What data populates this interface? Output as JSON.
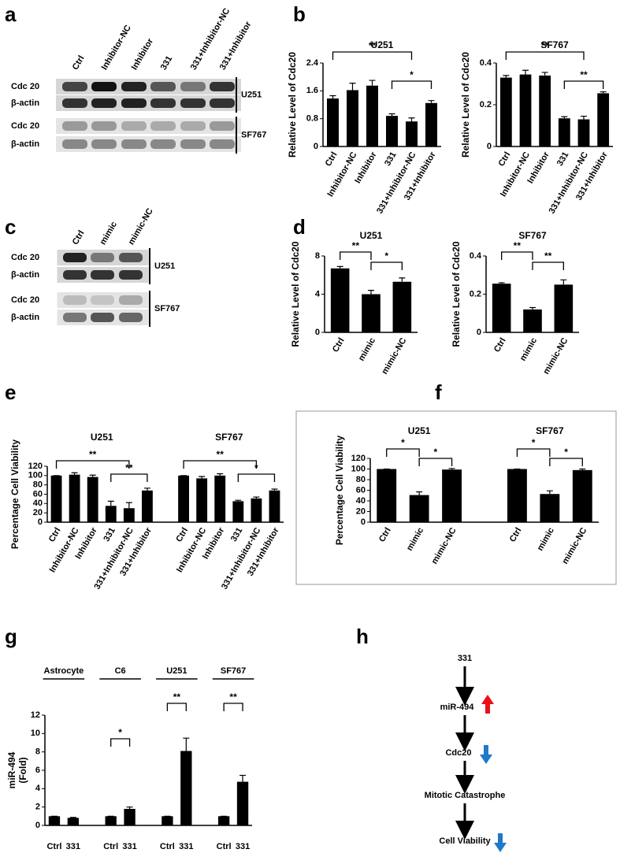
{
  "figure": {
    "panel_labels": [
      "a",
      "b",
      "c",
      "d",
      "e",
      "f",
      "g",
      "h"
    ]
  },
  "blot_a": {
    "lanes": [
      "Ctrl",
      "Inhibitor-NC",
      "Inhibitor",
      "331",
      "331+Inhibitor-NC",
      "331+Inhibitor"
    ],
    "rows": [
      "Cdc 20",
      "β-actin",
      "Cdc 20",
      "β-actin"
    ],
    "cell_lines": [
      "U251",
      "SF767"
    ]
  },
  "blot_c": {
    "lanes": [
      "Ctrl",
      "mimic",
      "mimic-NC"
    ],
    "rows": [
      "Cdc 20",
      "β-actin",
      "Cdc 20",
      "β-actin"
    ],
    "cell_lines": [
      "U251",
      "SF767"
    ]
  },
  "chart_data": [
    {
      "type": "bar",
      "title": "U251",
      "ylabel": "Relative Level of Cdc20",
      "color": "#000000",
      "categories": [
        "Ctrl",
        "Inhibitor-NC",
        "Inhibitor",
        "331",
        "331+Inhibitor-NC",
        "331+Inhibitor"
      ],
      "values": [
        1.38,
        1.62,
        1.75,
        0.88,
        0.72,
        1.25
      ],
      "errors": [
        0.08,
        0.2,
        0.15,
        0.06,
        0.1,
        0.07
      ],
      "ylim": [
        0,
        2.4
      ],
      "yticks": [
        0,
        0.8,
        1.6,
        2.4
      ],
      "annotations": [
        "**",
        "*"
      ]
    },
    {
      "type": "bar",
      "title": "SF767",
      "ylabel": "Relative Level of Cdc20",
      "color": "#000000",
      "categories": [
        "Ctrl",
        "Inhibitor-NC",
        "Inhibitor",
        "331",
        "331+Inhibitor-NC",
        "331+Inhibitor"
      ],
      "values": [
        0.33,
        0.345,
        0.34,
        0.135,
        0.13,
        0.255
      ],
      "errors": [
        0.01,
        0.02,
        0.015,
        0.008,
        0.015,
        0.007
      ],
      "ylim": [
        0,
        0.4
      ],
      "yticks": [
        0,
        0.2,
        0.4
      ],
      "annotations": [
        "**",
        "**"
      ]
    },
    {
      "type": "bar",
      "title": "U251",
      "ylabel": "Relative Level of Cdc20",
      "color": "#000000",
      "categories": [
        "Ctrl",
        "mimic",
        "mimic-NC"
      ],
      "values": [
        6.7,
        4.0,
        5.3
      ],
      "errors": [
        0.2,
        0.4,
        0.4
      ],
      "ylim": [
        0,
        8
      ],
      "yticks": [
        0,
        4,
        8
      ],
      "annotations": [
        "**",
        "*"
      ]
    },
    {
      "type": "bar",
      "title": "SF767",
      "ylabel": "Relative Level of Cdc20",
      "color": "#000000",
      "categories": [
        "Ctrl",
        "mimic",
        "mimic-NC"
      ],
      "values": [
        0.255,
        0.12,
        0.25
      ],
      "errors": [
        0.005,
        0.01,
        0.025
      ],
      "ylim": [
        0,
        0.4
      ],
      "yticks": [
        0,
        0.2,
        0.4
      ],
      "annotations": [
        "**",
        "**"
      ]
    },
    {
      "type": "bar",
      "ylabel": "Percentage Cell Viability",
      "color": "#000000",
      "groups": [
        {
          "name": "U251",
          "categories": [
            "Ctrl",
            "Inhibitor-NC",
            "Inhibitor",
            "331",
            "331+Inhibitor-NC",
            "331+Inhibitor"
          ],
          "values": [
            100,
            102,
            97,
            35,
            30,
            68
          ],
          "errors": [
            0,
            4,
            4,
            10,
            12,
            5
          ]
        },
        {
          "name": "SF767",
          "categories": [
            "Ctrl",
            "Inhibitor-NC",
            "Inhibitor",
            "331",
            "331+Inhibitor-NC",
            "331+Inhibitor"
          ],
          "values": [
            100,
            94,
            100,
            45,
            51,
            68
          ],
          "errors": [
            0,
            4,
            4,
            2,
            3,
            3
          ]
        }
      ],
      "ylim": [
        0,
        120
      ],
      "yticks": [
        0,
        20,
        40,
        60,
        80,
        100,
        120
      ],
      "annotations": [
        "**",
        "**",
        "**",
        "*"
      ]
    },
    {
      "type": "bar",
      "ylabel": "Percentage Cell Viability",
      "color": "#000000",
      "groups": [
        {
          "name": "U251",
          "categories": [
            "Ctrl",
            "mimic",
            "mimic-NC"
          ],
          "values": [
            100,
            51,
            99
          ],
          "errors": [
            0,
            6,
            2
          ]
        },
        {
          "name": "SF767",
          "categories": [
            "Ctrl",
            "mimic",
            "mimic-NC"
          ],
          "values": [
            100,
            53,
            98
          ],
          "errors": [
            0,
            6,
            2
          ]
        }
      ],
      "ylim": [
        0,
        120
      ],
      "yticks": [
        0,
        20,
        40,
        60,
        80,
        100,
        120
      ],
      "annotations": [
        "*",
        "*",
        "*",
        "*"
      ]
    },
    {
      "type": "bar",
      "ylabel": [
        "miR-494",
        "(Fold)"
      ],
      "color": "#000000",
      "groups": [
        {
          "name": "Astrocyte",
          "categories": [
            "Ctrl",
            "331"
          ],
          "values": [
            1.0,
            0.82
          ],
          "errors": [
            0,
            0.05
          ]
        },
        {
          "name": "C6",
          "categories": [
            "Ctrl",
            "331"
          ],
          "values": [
            1.0,
            1.8
          ],
          "errors": [
            0,
            0.2
          ]
        },
        {
          "name": "U251",
          "categories": [
            "Ctrl",
            "331"
          ],
          "values": [
            1.0,
            8.1
          ],
          "errors": [
            0,
            1.4
          ]
        },
        {
          "name": "SF767",
          "categories": [
            "Ctrl",
            "331"
          ],
          "values": [
            1.0,
            4.75
          ],
          "errors": [
            0,
            0.7
          ]
        }
      ],
      "ylim": [
        0,
        12
      ],
      "yticks": [
        0,
        2,
        4,
        6,
        8,
        10,
        12
      ],
      "annotations": [
        "*",
        "**",
        "**"
      ]
    }
  ],
  "diagram_h": {
    "nodes": [
      "331",
      "miR-494",
      "Cdc20",
      "Mitotic Catastrophe",
      "Cell Viability"
    ]
  }
}
